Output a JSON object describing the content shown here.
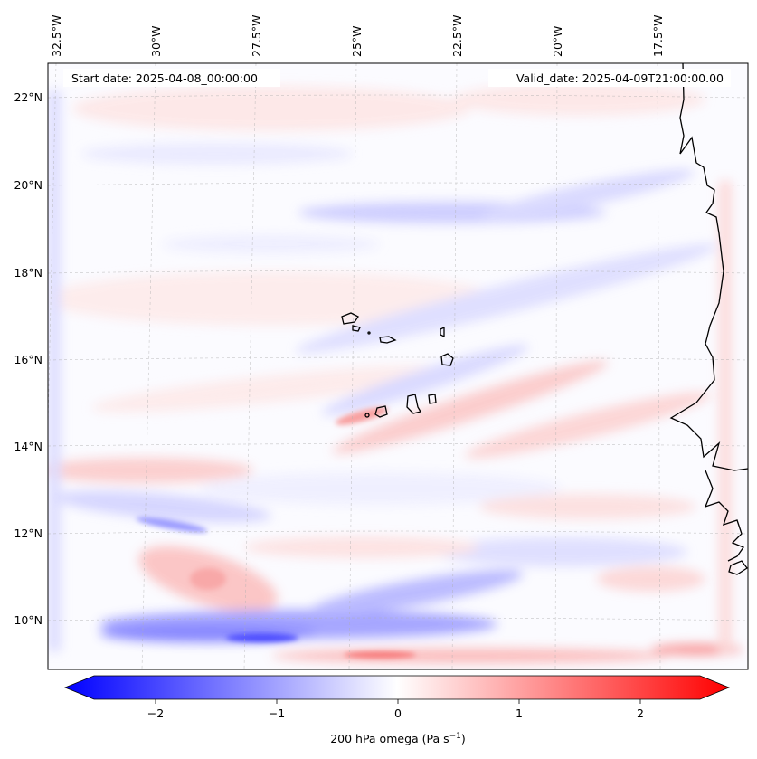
{
  "map": {
    "start_date": "Start date: 2025-04-08_00:00:00",
    "valid_date": "Valid_date: 2025-04-09T21:00:00.00",
    "lon_labels": [
      "32.5°W",
      "30°W",
      "27.5°W",
      "25°W",
      "22.5°W",
      "20°W",
      "17.5°W"
    ],
    "lat_labels": [
      "22°N",
      "20°N",
      "18°N",
      "16°N",
      "14°N",
      "12°N",
      "10°N"
    ],
    "field": "200 hPa omega",
    "colorbar": {
      "label_main": "200 hPa omega (Pa s",
      "label_exp": "−1",
      "label_close": ")",
      "ticks": [
        "−2",
        "−1",
        "0",
        "1",
        "2"
      ],
      "tick_values": [
        -2,
        -1,
        0,
        1,
        2
      ],
      "range": [
        -2.5,
        2.5
      ],
      "colormap": "bwr",
      "low_color": "#0000ff",
      "high_color": "#ff0000"
    },
    "coastline_color": "#000000",
    "grid": true
  }
}
